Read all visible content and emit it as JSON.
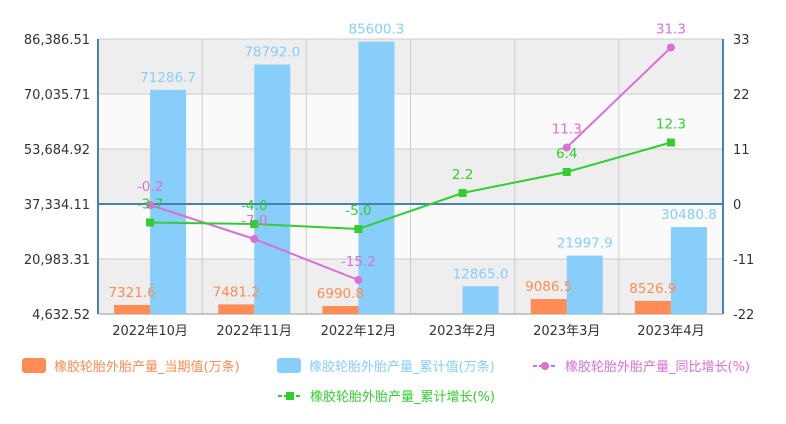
{
  "chart_data": {
    "type": "bar",
    "categories": [
      "2022年10月",
      "2022年11月",
      "2022年12月",
      "2023年2月",
      "2023年3月",
      "2023年4月"
    ],
    "y_left": {
      "ticks": [
        "86,386.51",
        "70,035.71",
        "53,684.92",
        "37,334.11",
        "20,983.31",
        "4,632.52"
      ],
      "range": [
        4632.52,
        86386.51
      ]
    },
    "y_right": {
      "ticks": [
        "33",
        "22",
        "11",
        "0",
        "-11",
        "-22"
      ],
      "range": [
        -22,
        33
      ]
    },
    "series": [
      {
        "name": "橡胶轮胎外胎产量_当期值(万条)",
        "type": "bar",
        "axis": "left",
        "color": "#ff8c55",
        "label_color": "#ff8c55",
        "values": [
          7321.6,
          7481.2,
          6990.8,
          null,
          9086.5,
          8526.9
        ],
        "labels": [
          "7321.6",
          "7481.2",
          "6990.8",
          "",
          "9086.5",
          "8526.9"
        ]
      },
      {
        "name": "橡胶轮胎外胎产量_累计值(万条)",
        "type": "bar",
        "axis": "left",
        "color": "#87cefa",
        "label_color": "#87cefa",
        "values": [
          71286.7,
          78792.0,
          85600.3,
          12865.0,
          21997.9,
          30480.8
        ],
        "labels": [
          "71286.7",
          "78792.0",
          "85600.3",
          "12865.0",
          "21997.9",
          "30480.8"
        ]
      },
      {
        "name": "橡胶轮胎外胎产量_同比增长(%)",
        "type": "line",
        "axis": "right",
        "color": "#da70d6",
        "label_color": "#da70d6",
        "marker": "circle",
        "values": [
          -0.2,
          -7.0,
          -15.2,
          null,
          11.3,
          31.3
        ],
        "labels": [
          "-0.2",
          "-7.0",
          "-15.2",
          "",
          "11.3",
          "31.3"
        ]
      },
      {
        "name": "橡胶轮胎外胎产量_累计增长(%)",
        "type": "line",
        "axis": "right",
        "color": "#32cd32",
        "label_color": "#32cd32",
        "marker": "square",
        "values": [
          -3.7,
          -4.0,
          -5.0,
          2.2,
          6.4,
          12.3
        ],
        "labels": [
          "-3.7",
          "-4.0",
          "-5.0",
          "2.2",
          "6.4",
          "12.3"
        ]
      }
    ],
    "grid": true,
    "legend_position": "bottom",
    "zero_line_color": "#4682b4"
  }
}
